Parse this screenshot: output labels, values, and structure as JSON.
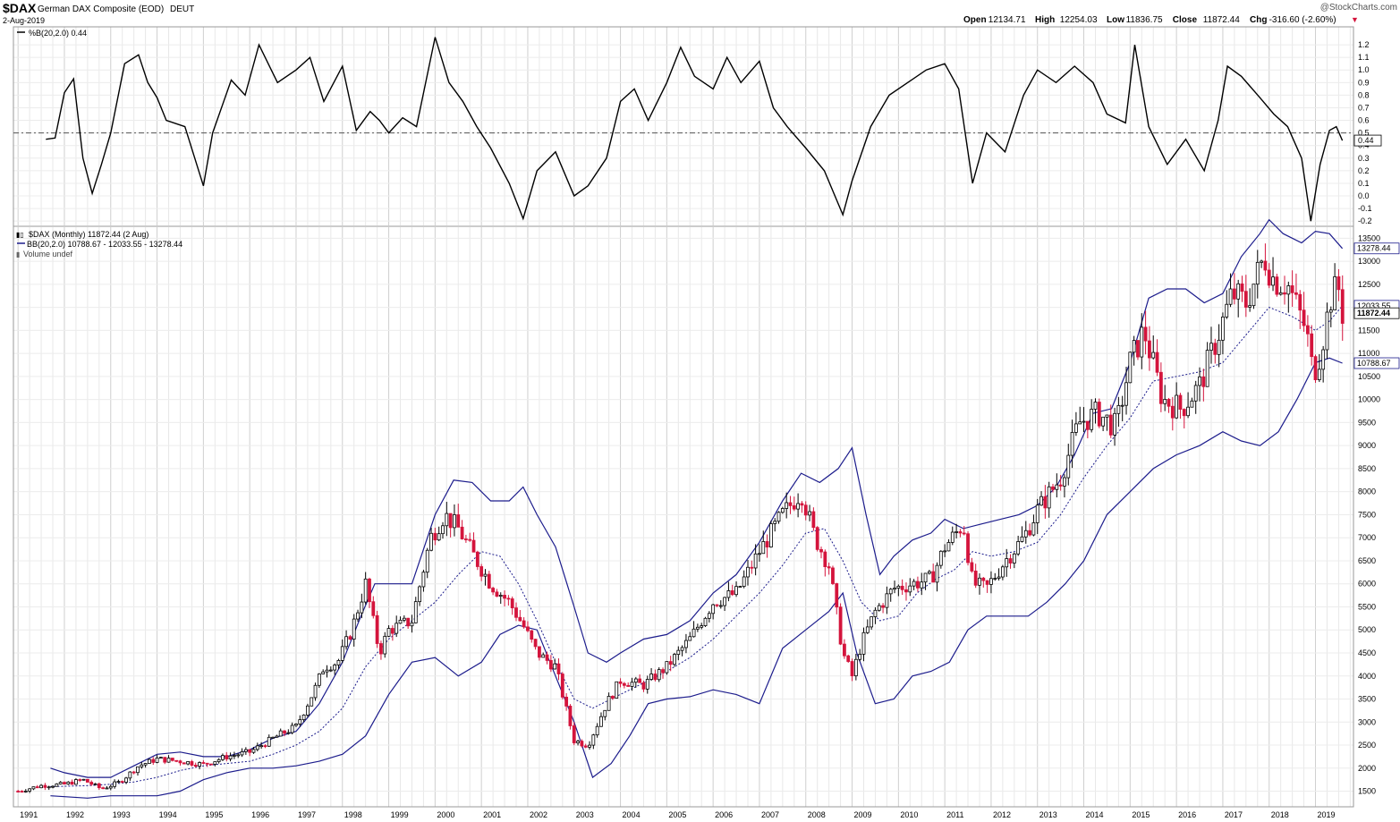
{
  "header": {
    "symbol": "$DAX",
    "name": "German DAX Composite (EOD)",
    "exchange": "DEUT",
    "date": "2-Aug-2019",
    "watermark": "@StockCharts.com",
    "ohlc": [
      {
        "label": "Open",
        "value": "12134.71"
      },
      {
        "label": "High",
        "value": "12254.03"
      },
      {
        "label": "Low",
        "value": "11836.75"
      },
      {
        "label": "Close",
        "value": "11872.44"
      },
      {
        "label": "Chg",
        "value": "-316.60 (-2.60%)"
      }
    ]
  },
  "colors": {
    "up": "#000000",
    "down": "#d4143c",
    "band": "#1c1c8c",
    "grid": "#dcdcdc",
    "indicator": "#000000"
  },
  "legend": {
    "indicator": "%B(20,2.0) 0.44",
    "price": "$DAX (Monthly) 11872.44 (2 Aug)",
    "bb": "BB(20,2.0) 10788.67 - 12033.55 - 13278.44",
    "volume": "Volume undef"
  },
  "chart_data": [
    {
      "type": "line",
      "series": [
        {
          "name": "%B(20,2.0)",
          "last": "0.44"
        }
      ],
      "y_ticks": [
        "1.2",
        "1.1",
        "1.0",
        "0.9",
        "0.8",
        "0.7",
        "0.6",
        "0.5",
        "0.4",
        "0.3",
        "0.2",
        "0.1",
        "0.0",
        "-0.1",
        "-0.2"
      ],
      "ylim": [
        -0.22,
        1.3
      ],
      "reference_line": 0.5,
      "x": [
        1991.6,
        1991.8,
        1992.0,
        1992.2,
        1992.4,
        1992.6,
        1992.8,
        1993.0,
        1993.3,
        1993.6,
        1993.8,
        1994.0,
        1994.2,
        1994.6,
        1995.0,
        1995.2,
        1995.6,
        1995.9,
        1996.2,
        1996.6,
        1997.0,
        1997.3,
        1997.6,
        1998.0,
        1998.3,
        1998.6,
        1998.8,
        1999.0,
        1999.3,
        1999.6,
        2000.0,
        2000.3,
        2000.6,
        2000.9,
        2001.2,
        2001.6,
        2001.9,
        2002.2,
        2002.6,
        2003.0,
        2003.3,
        2003.7,
        2004.0,
        2004.3,
        2004.6,
        2005.0,
        2005.3,
        2005.6,
        2006.0,
        2006.3,
        2006.6,
        2007.0,
        2007.3,
        2007.6,
        2008.0,
        2008.4,
        2008.8,
        2009.0,
        2009.4,
        2009.8,
        2010.2,
        2010.6,
        2011.0,
        2011.3,
        2011.6,
        2011.9,
        2012.3,
        2012.7,
        2013.0,
        2013.4,
        2013.8,
        2014.2,
        2014.5,
        2014.9,
        2015.1,
        2015.4,
        2015.8,
        2016.2,
        2016.6,
        2016.9,
        2017.1,
        2017.4,
        2017.8,
        2018.1,
        2018.4,
        2018.7,
        2018.9,
        2019.1,
        2019.3,
        2019.45,
        2019.58
      ],
      "values": [
        0.45,
        0.46,
        0.82,
        0.93,
        0.3,
        0.02,
        0.25,
        0.5,
        1.05,
        1.12,
        0.9,
        0.78,
        0.6,
        0.55,
        0.08,
        0.5,
        0.92,
        0.8,
        1.2,
        0.9,
        1.0,
        1.1,
        0.75,
        1.03,
        0.52,
        0.67,
        0.6,
        0.5,
        0.62,
        0.55,
        1.26,
        0.9,
        0.75,
        0.55,
        0.38,
        0.1,
        -0.18,
        0.2,
        0.35,
        0.0,
        0.08,
        0.3,
        0.75,
        0.85,
        0.6,
        0.9,
        1.18,
        0.95,
        0.85,
        1.1,
        0.9,
        1.07,
        0.7,
        0.55,
        0.38,
        0.2,
        -0.15,
        0.12,
        0.55,
        0.8,
        0.9,
        1.0,
        1.05,
        0.85,
        0.1,
        0.5,
        0.35,
        0.8,
        1.0,
        0.9,
        1.03,
        0.9,
        0.65,
        0.58,
        1.2,
        0.55,
        0.25,
        0.45,
        0.2,
        0.6,
        1.03,
        0.95,
        0.78,
        0.65,
        0.55,
        0.3,
        -0.2,
        0.25,
        0.52,
        0.55,
        0.44
      ]
    },
    {
      "type": "candlestick",
      "title": "$DAX (Monthly)",
      "y_ticks": [
        "13500",
        "13000",
        "12500",
        "12000",
        "11500",
        "11000",
        "10500",
        "10000",
        "9500",
        "9000",
        "8500",
        "8000",
        "7500",
        "7000",
        "6500",
        "6000",
        "5500",
        "5000",
        "4500",
        "4000",
        "3500",
        "3000",
        "2500",
        "2000",
        "1500"
      ],
      "x_ticks": [
        "1991",
        "1992",
        "1993",
        "1994",
        "1995",
        "1996",
        "1997",
        "1998",
        "1999",
        "2000",
        "2001",
        "2002",
        "2003",
        "2004",
        "2005",
        "2006",
        "2007",
        "2008",
        "2009",
        "2010",
        "2011",
        "2012",
        "2013",
        "2014",
        "2015",
        "2016",
        "2017",
        "2018",
        "2019"
      ],
      "ylim": [
        1200,
        13720
      ],
      "axis_labels": {
        "upper": "13278.44",
        "mid": "12033.55",
        "close": "11872.44",
        "lower": "10788.67"
      },
      "price_path": {
        "x": [
          1991.0,
          1991.5,
          1992.0,
          1992.4,
          1992.8,
          1993.2,
          1993.6,
          1994.0,
          1994.5,
          1995.0,
          1995.5,
          1996.0,
          1996.6,
          1997.0,
          1997.4,
          1997.6,
          1997.9,
          1998.2,
          1998.5,
          1998.8,
          1999.0,
          1999.5,
          1999.9,
          2000.2,
          2000.5,
          2000.9,
          2001.2,
          2001.6,
          2001.9,
          2002.2,
          2002.6,
          2003.0,
          2003.3,
          2003.7,
          2004.0,
          2004.5,
          2005.0,
          2005.5,
          2006.0,
          2006.5,
          2007.0,
          2007.5,
          2007.9,
          2008.2,
          2008.5,
          2008.8,
          2009.0,
          2009.2,
          2009.5,
          2009.9,
          2010.3,
          2010.7,
          2011.0,
          2011.4,
          2011.6,
          2011.9,
          2012.3,
          2012.7,
          2013.0,
          2013.5,
          2013.9,
          2014.3,
          2014.7,
          2015.0,
          2015.3,
          2015.7,
          2016.1,
          2016.5,
          2016.9,
          2017.2,
          2017.5,
          2017.9,
          2018.1,
          2018.4,
          2018.8,
          2018.95,
          2019.1,
          2019.35,
          2019.5,
          2019.58
        ],
        "y": [
          1500,
          1620,
          1650,
          1750,
          1550,
          1700,
          2050,
          2200,
          2150,
          2080,
          2250,
          2350,
          2700,
          2900,
          3700,
          4200,
          4300,
          5000,
          6000,
          4500,
          5000,
          5200,
          7000,
          7500,
          7200,
          6500,
          6000,
          5600,
          5100,
          4500,
          4200,
          2600,
          2500,
          3400,
          3900,
          3800,
          4200,
          4800,
          5600,
          5800,
          6700,
          7500,
          8000,
          7000,
          6400,
          4500,
          4000,
          4700,
          5400,
          5900,
          6000,
          6100,
          6800,
          7300,
          6000,
          5900,
          6500,
          7000,
          7600,
          8300,
          9500,
          9700,
          9400,
          10800,
          11500,
          10000,
          9800,
          10300,
          11400,
          12300,
          12100,
          13100,
          12600,
          12500,
          11500,
          10550,
          11000,
          12300,
          12400,
          11872
        ]
      },
      "bb_upper": {
        "x": [
          1991.7,
          1992.0,
          1992.5,
          1993.0,
          1993.5,
          1994.0,
          1994.5,
          1995.0,
          1995.5,
          1996.0,
          1996.5,
          1997.0,
          1997.5,
          1998.0,
          1998.4,
          1998.7,
          1999.0,
          1999.5,
          2000.0,
          2000.4,
          2000.8,
          2001.2,
          2001.6,
          2001.9,
          2002.2,
          2002.6,
          2003.0,
          2003.3,
          2003.7,
          2004.0,
          2004.5,
          2005.0,
          2005.5,
          2006.0,
          2006.5,
          2007.0,
          2007.5,
          2007.9,
          2008.3,
          2008.7,
          2009.0,
          2009.3,
          2009.6,
          2009.9,
          2010.3,
          2010.7,
          2011.0,
          2011.4,
          2011.8,
          2012.2,
          2012.6,
          2013.0,
          2013.4,
          2013.8,
          2014.2,
          2014.6,
          2015.0,
          2015.4,
          2015.8,
          2016.2,
          2016.6,
          2017.0,
          2017.4,
          2017.8,
          2018.0,
          2018.3,
          2018.7,
          2019.0,
          2019.3,
          2019.58
        ],
        "y": [
          2000,
          1900,
          1800,
          1800,
          2050,
          2300,
          2350,
          2250,
          2250,
          2400,
          2650,
          2800,
          3400,
          4300,
          5300,
          6000,
          6000,
          6000,
          7500,
          8250,
          8200,
          7800,
          7800,
          8100,
          7500,
          6800,
          5500,
          4500,
          4300,
          4500,
          4800,
          4900,
          5200,
          5800,
          6200,
          6900,
          7800,
          8400,
          8200,
          8500,
          8950,
          7500,
          6200,
          6600,
          6950,
          7100,
          7400,
          7200,
          7300,
          7400,
          7500,
          7700,
          8100,
          8800,
          9700,
          9800,
          10800,
          12200,
          12400,
          12400,
          12100,
          12300,
          13100,
          13600,
          13900,
          13600,
          13400,
          13650,
          13600,
          13278
        ]
      },
      "bb_middle": {
        "x": [
          1991.7,
          1992.5,
          1993.0,
          1993.5,
          1994.0,
          1994.5,
          1995.0,
          1995.5,
          1996.0,
          1996.5,
          1997.0,
          1997.5,
          1998.0,
          1998.5,
          1999.0,
          1999.5,
          2000.0,
          2000.5,
          2001.0,
          2001.4,
          2001.8,
          2002.2,
          2002.6,
          2003.0,
          2003.4,
          2003.8,
          2004.2,
          2004.6,
          2005.0,
          2005.5,
          2006.0,
          2006.5,
          2007.0,
          2007.5,
          2008.0,
          2008.4,
          2008.8,
          2009.2,
          2009.6,
          2010.0,
          2010.4,
          2010.8,
          2011.2,
          2011.6,
          2012.0,
          2012.5,
          2013.0,
          2013.5,
          2014.0,
          2014.5,
          2015.0,
          2015.5,
          2016.0,
          2016.5,
          2017.0,
          2017.5,
          2018.0,
          2018.5,
          2019.0,
          2019.3,
          2019.58
        ],
        "y": [
          1600,
          1620,
          1650,
          1700,
          1800,
          1950,
          2050,
          2100,
          2150,
          2300,
          2500,
          2800,
          3300,
          4200,
          4800,
          5200,
          5600,
          6200,
          6700,
          6600,
          6000,
          5200,
          4300,
          3500,
          3300,
          3500,
          3700,
          3900,
          4100,
          4400,
          4800,
          5300,
          5800,
          6400,
          7100,
          7200,
          6500,
          5600,
          5200,
          5300,
          5800,
          6100,
          6300,
          6700,
          6600,
          6700,
          6900,
          7500,
          8300,
          9000,
          9600,
          10400,
          10500,
          10600,
          10800,
          11400,
          12000,
          11800,
          11500,
          11700,
          12033
        ]
      },
      "bb_lower": {
        "x": [
          1991.7,
          1992.5,
          1993.0,
          1993.5,
          1994.0,
          1994.5,
          1995.0,
          1995.5,
          1996.0,
          1996.5,
          1997.0,
          1997.5,
          1998.0,
          1998.5,
          1999.0,
          1999.5,
          2000.0,
          2000.5,
          2001.0,
          2001.4,
          2001.8,
          2002.2,
          2002.6,
          2003.0,
          2003.4,
          2003.8,
          2004.2,
          2004.6,
          2005.0,
          2005.5,
          2006.0,
          2006.5,
          2007.0,
          2007.5,
          2008.0,
          2008.5,
          2008.8,
          2009.1,
          2009.5,
          2009.9,
          2010.3,
          2010.7,
          2011.1,
          2011.5,
          2011.9,
          2012.3,
          2012.8,
          2013.2,
          2013.6,
          2014.0,
          2014.5,
          2015.0,
          2015.5,
          2016.0,
          2016.5,
          2017.0,
          2017.4,
          2017.8,
          2018.2,
          2018.6,
          2019.0,
          2019.3,
          2019.58
        ],
        "y": [
          1400,
          1350,
          1400,
          1400,
          1400,
          1500,
          1750,
          1900,
          2000,
          2000,
          2050,
          2150,
          2300,
          2700,
          3600,
          4300,
          4400,
          4000,
          4300,
          4900,
          5100,
          5000,
          4000,
          3000,
          1800,
          2100,
          2700,
          3400,
          3500,
          3550,
          3700,
          3600,
          3400,
          4600,
          5000,
          5400,
          5800,
          4500,
          3400,
          3500,
          4000,
          4100,
          4300,
          5000,
          5300,
          5300,
          5300,
          5600,
          6000,
          6500,
          7500,
          8000,
          8500,
          8800,
          9000,
          9300,
          9100,
          9000,
          9300,
          10000,
          10800,
          10900,
          10788
        ]
      }
    }
  ]
}
